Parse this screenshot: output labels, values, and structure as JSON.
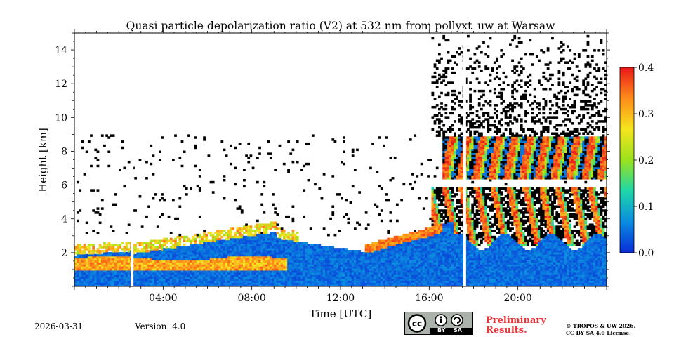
{
  "chart_data": {
    "type": "heatmap",
    "title": "Quasi particle depolarization ratio (V2) at 532 nm from pollyxt_uw at Warsaw",
    "xlabel": "Time [UTC]",
    "ylabel": "Height [km]",
    "xlim_hours": [
      0,
      24
    ],
    "ylim_km": [
      0,
      15
    ],
    "x_ticks": [
      {
        "hour": 4,
        "label": "04:00"
      },
      {
        "hour": 8,
        "label": "08:00"
      },
      {
        "hour": 12,
        "label": "12:00"
      },
      {
        "hour": 16,
        "label": "16:00"
      },
      {
        "hour": 20,
        "label": "20:00"
      }
    ],
    "y_ticks": [
      {
        "km": 2,
        "label": "2"
      },
      {
        "km": 4,
        "label": "4"
      },
      {
        "km": 6,
        "label": "6"
      },
      {
        "km": 8,
        "label": "8"
      },
      {
        "km": 10,
        "label": "10"
      },
      {
        "km": 12,
        "label": "12"
      },
      {
        "km": 14,
        "label": "14"
      }
    ],
    "colorbar": {
      "range": [
        0.0,
        0.4
      ],
      "ticks": [
        {
          "value": 0.0,
          "label": "0.0"
        },
        {
          "value": 0.1,
          "label": "0.1"
        },
        {
          "value": 0.2,
          "label": "0.2"
        },
        {
          "value": 0.3,
          "label": "0.3"
        },
        {
          "value": 0.4,
          "label": "0.4"
        }
      ],
      "colormap": [
        "#0a2bd8",
        "#0a8ce0",
        "#1ed7a8",
        "#9be11e",
        "#f4e51e",
        "#ff8c1a",
        "#e81818"
      ]
    },
    "data_gaps_hours": [
      2.6,
      17.6
    ],
    "features": [
      {
        "name": "boundary-layer",
        "t0": 0,
        "t1": 24,
        "h_top_km": "1.5-3.0",
        "value": 0.03
      },
      {
        "name": "aerosol-layer-morning",
        "t0": 0,
        "t1": 9,
        "h_km": "1.0-2.0",
        "value": 0.32
      },
      {
        "name": "cloud-streaks-afternoon",
        "t0": 16,
        "t1": 24,
        "h_km": "2.5-5.5",
        "value": 0.35
      },
      {
        "name": "cirrus-evening",
        "t0": 17,
        "t1": 24,
        "h_km": "6.5-8.5",
        "value": 0.36
      }
    ]
  },
  "footer": {
    "date": "2026-03-31",
    "version": "Version: 4.0",
    "license_badge": {
      "by": "BY",
      "sa": "SA"
    },
    "preliminary": [
      "Preliminary",
      "Results."
    ],
    "copyright": [
      "© TROPOS & UW 2026.",
      "CC BY SA 4.0 License."
    ]
  }
}
